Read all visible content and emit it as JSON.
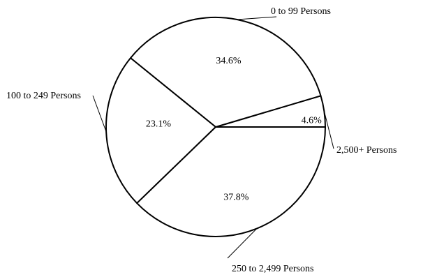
{
  "chart_data": {
    "type": "pie",
    "start_angle_deg": 0,
    "direction": "counterclockwise",
    "slices": [
      {
        "label": "2,500+ Persons",
        "value": 4.6,
        "value_label": "4.6%"
      },
      {
        "label": "0 to 99 Persons",
        "value": 34.6,
        "value_label": "34.6%"
      },
      {
        "label": "100 to 249 Persons",
        "value": 23.1,
        "value_label": "23.1%"
      },
      {
        "label": "250 to 2,499 Persons",
        "value": 37.8,
        "value_label": "37.8%"
      }
    ],
    "colors": {
      "fill": "#ffffff",
      "stroke": "#000000"
    }
  }
}
